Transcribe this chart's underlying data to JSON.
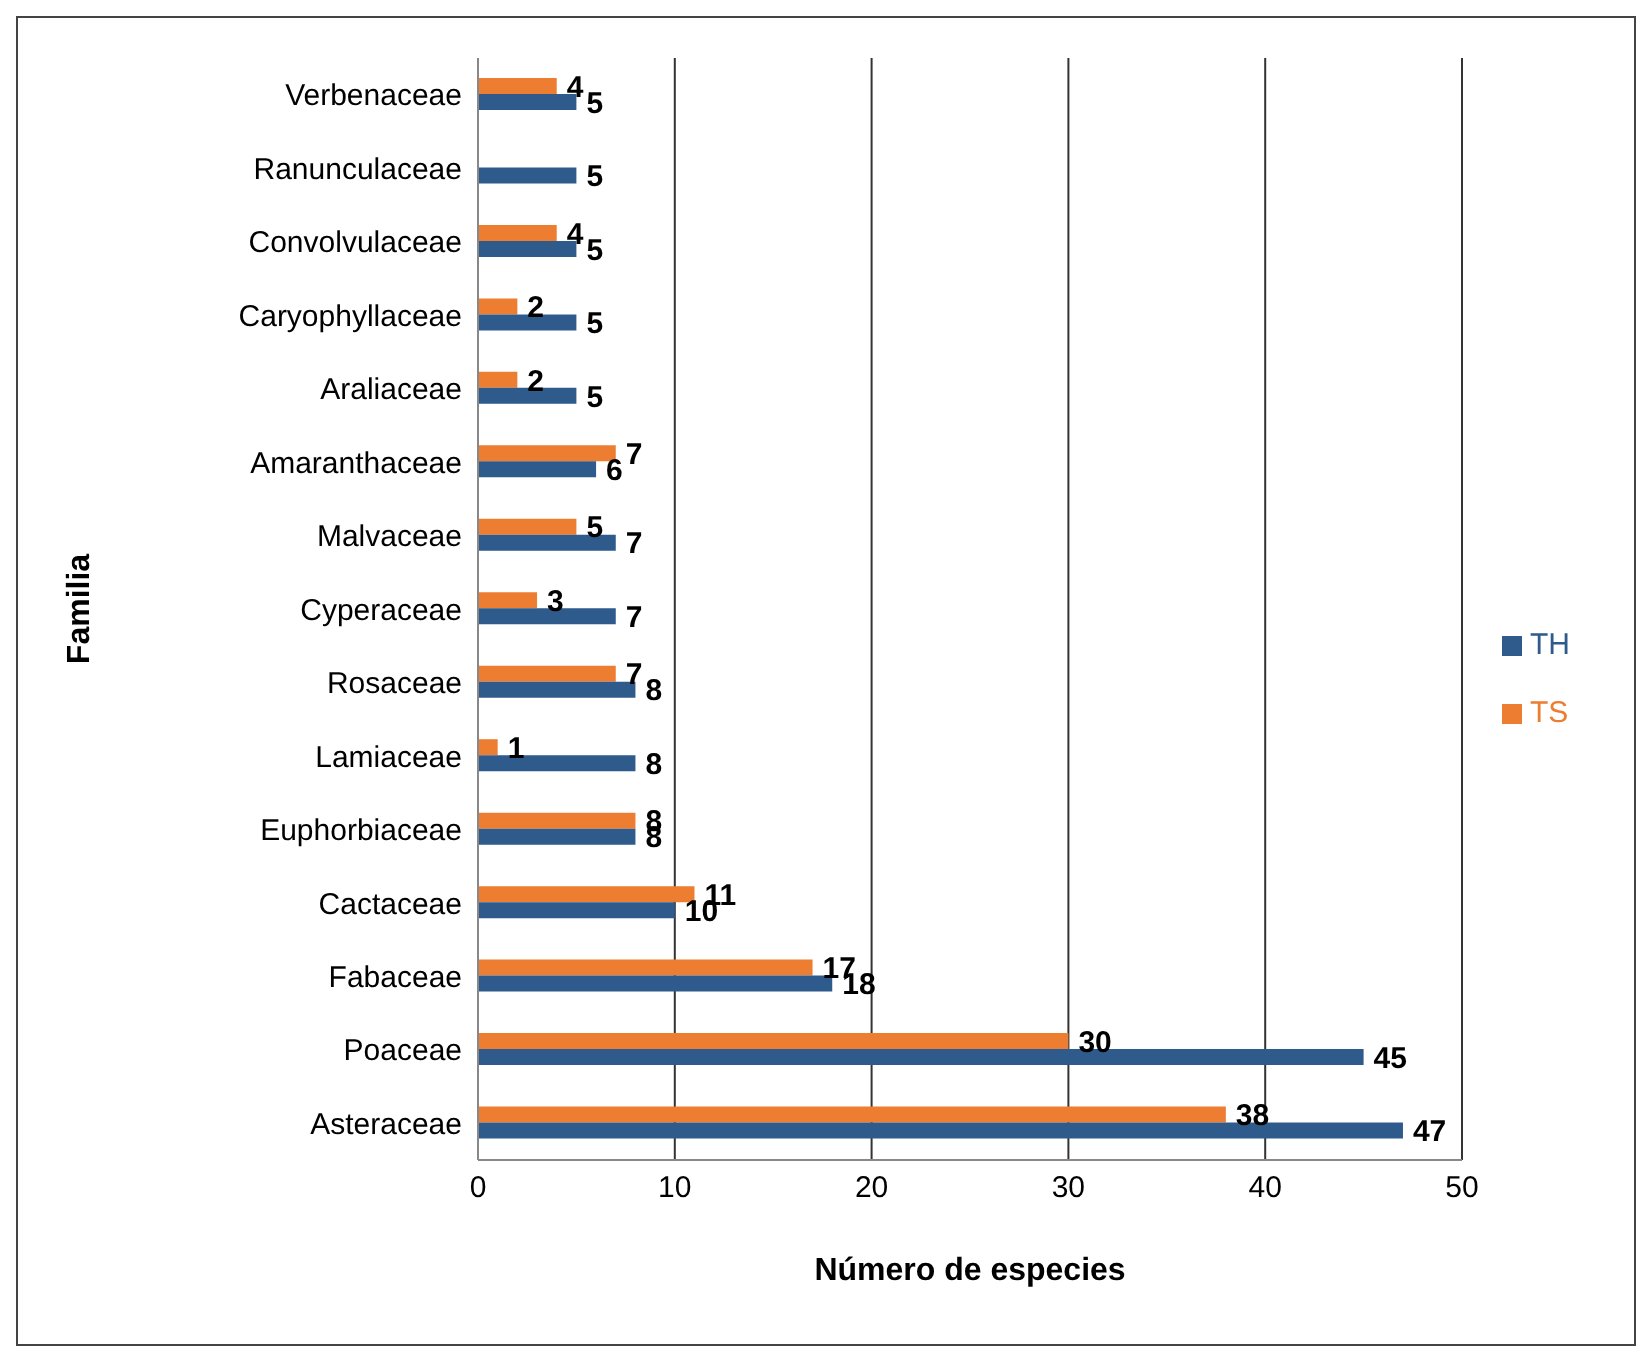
{
  "chart_data": {
    "type": "bar",
    "orientation": "horizontal",
    "xlabel": "Número de especies",
    "ylabel": "Familia",
    "categories": [
      "Verbenaceae",
      "Ranunculaceae",
      "Convolvulaceae",
      "Caryophyllaceae",
      "Araliaceae",
      "Amaranthaceae",
      "Malvaceae",
      "Cyperaceae",
      "Rosaceae",
      "Lamiaceae",
      "Euphorbiaceae",
      "Cactaceae",
      "Fabaceae",
      "Poaceae",
      "Asteraceae"
    ],
    "series": [
      {
        "name": "TS",
        "color": "#ed7d31",
        "values": [
          4,
          null,
          4,
          2,
          2,
          7,
          5,
          3,
          7,
          1,
          8,
          11,
          17,
          30,
          38
        ]
      },
      {
        "name": "TH",
        "color": "#2e5a8c",
        "values": [
          5,
          5,
          5,
          5,
          5,
          6,
          7,
          7,
          8,
          8,
          8,
          10,
          18,
          45,
          47
        ]
      }
    ],
    "xlim": [
      0,
      50
    ],
    "xticks": [
      0,
      10,
      20,
      30,
      40,
      50
    ],
    "grid": "x",
    "legend": "right",
    "data_labels": true
  }
}
